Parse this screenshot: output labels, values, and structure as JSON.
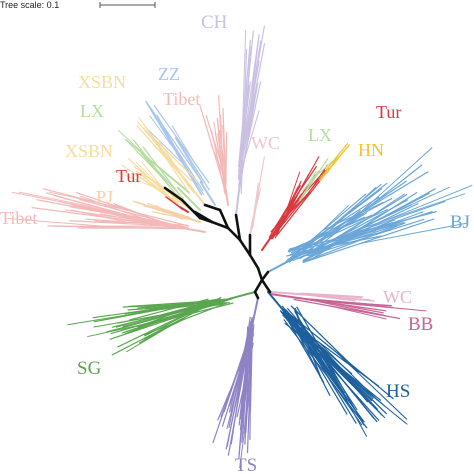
{
  "scale": {
    "text": "Tree scale: 0.1"
  },
  "labels": {
    "CH": "CH",
    "ZZ": "ZZ",
    "XSBN_1": "XSBN",
    "Tibet_1": "Tibet",
    "LX_1": "LX",
    "XSBN_2": "XSBN",
    "Tur_1": "Tur",
    "PJ": "PJ",
    "Tibet_2": "Tibet",
    "WC_1": "WC",
    "LX_2": "LX",
    "Tur_2": "Tur",
    "HN": "HN",
    "BJ": "BJ",
    "WC_2": "WC",
    "BB": "BB",
    "SG": "SG",
    "HS": "HS",
    "TS": "TS"
  },
  "colors": {
    "CH": "#c9c0e2",
    "ZZ": "#a9c6ea",
    "XSBN": "#f7dca0",
    "LX": "#b6dca0",
    "Tibet": "#f3b9b9",
    "Tur": "#d9393d",
    "PJ": "#f7cfa6",
    "WC": "#f0c6cc",
    "HN": "#f2c42f",
    "BJ": "#6aa6d8",
    "WC2": "#e8b2cd",
    "BB": "#c66595",
    "SG": "#5aa64f",
    "HS": "#1c5f9c",
    "TS": "#8f83c6",
    "backbone": "#111111"
  }
}
